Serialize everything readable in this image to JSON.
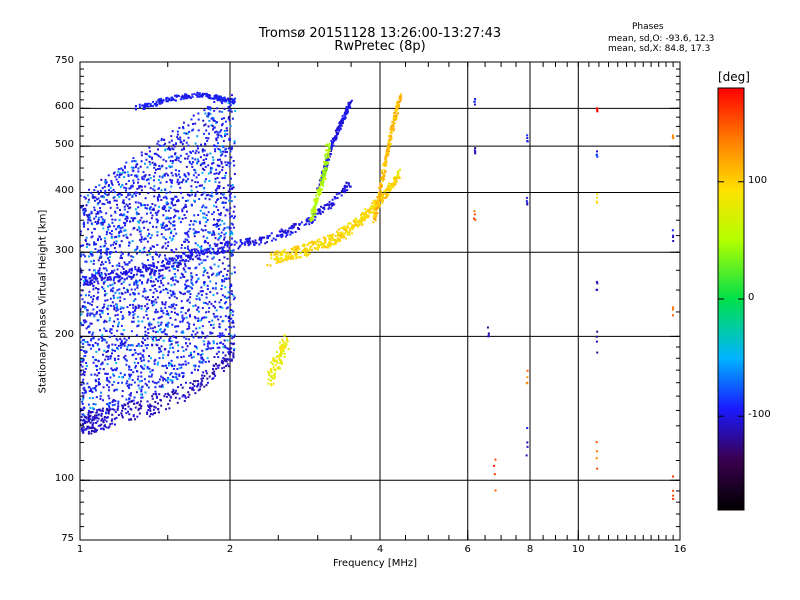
{
  "title": {
    "line1": "Tromsø 20151128 13:26:00-13:27:43",
    "line2": "RwPretec (8p)"
  },
  "phases_box": {
    "heading": "Phases",
    "line_o": "mean, sd,O: -93.6, 12.3",
    "line_x": "mean, sd,X: 84.8, 17.3"
  },
  "chart_data": {
    "type": "scatter",
    "title": "Tromsø 20151128 13:26:00-13:27:43",
    "subtitle": "RwPretec (8p)",
    "xlabel": "Frequency [MHz]",
    "ylabel": "Stationary phase Virtual Height [km]",
    "x_scale": "log",
    "y_scale": "log",
    "xlim": [
      1,
      16
    ],
    "ylim": [
      75,
      750
    ],
    "x_ticks": [
      1,
      2,
      4,
      6,
      8,
      10,
      16
    ],
    "x_tick_labels": [
      "1",
      "2",
      "4",
      "6",
      "8",
      "10",
      "16"
    ],
    "x_minor_ticks": [
      3,
      5,
      7,
      9,
      11,
      12,
      13,
      14,
      15
    ],
    "y_ticks": [
      75,
      100,
      200,
      300,
      400,
      500,
      600,
      750
    ],
    "y_tick_labels": [
      "75",
      "100",
      "200",
      "300",
      "400",
      "500",
      "600",
      "750"
    ],
    "grid": true,
    "grid_x": [
      2,
      4,
      6,
      8,
      10
    ],
    "grid_y": [
      100,
      200,
      300,
      400,
      500,
      600
    ],
    "colorbar": {
      "title": "[deg]",
      "range": [
        -180,
        180
      ],
      "ticks": [
        100,
        0,
        -100
      ],
      "tick_labels": [
        "100",
        "0",
        "-100"
      ]
    },
    "series": [
      {
        "mode": "O",
        "phase_deg_mean": -93.6,
        "traces": [
          {
            "f": [
              1.0,
              1.05,
              1.1,
              1.2,
              1.35,
              1.5,
              1.7,
              1.9,
              2.05
            ],
            "h": [
              130,
              132,
              134,
              137,
              142,
              148,
              158,
              172,
              188
            ],
            "phase": -110
          },
          {
            "f": [
              1.0,
              1.1,
              1.25,
              1.4,
              1.6,
              1.8,
              2.0,
              2.3,
              2.6,
              2.9,
              3.2,
              3.5
            ],
            "h": [
              260,
              265,
              270,
              278,
              290,
              300,
              310,
              318,
              330,
              350,
              380,
              420
            ],
            "phase": -100
          },
          {
            "f": [
              1.3,
              1.45,
              1.6,
              1.75,
              1.9,
              2.05
            ],
            "h": [
              600,
              620,
              635,
              640,
              630,
              620
            ],
            "phase": -95
          },
          {
            "f": [
              3.0,
              3.1,
              3.2,
              3.3,
              3.4,
              3.5
            ],
            "h": [
              400,
              450,
              500,
              540,
              580,
              620
            ],
            "phase": -100
          }
        ],
        "band_f": [
          1.0,
          2.05
        ],
        "band_h": [
          130,
          640
        ]
      },
      {
        "mode": "X",
        "phase_deg_mean": 84.8,
        "traces": [
          {
            "f": [
              2.4,
              2.6,
              2.8,
              3.0,
              3.2,
              3.4,
              3.6,
              3.8,
              4.0,
              4.2,
              4.4
            ],
            "h": [
              290,
              296,
              302,
              310,
              318,
              330,
              345,
              365,
              385,
              410,
              440
            ],
            "phase": 95
          },
          {
            "f": [
              3.9,
              4.0,
              4.1,
              4.2,
              4.3,
              4.4
            ],
            "h": [
              350,
              400,
              460,
              520,
              580,
              640
            ],
            "phase": 110
          },
          {
            "f": [
              2.9,
              3.0,
              3.1,
              3.15
            ],
            "h": [
              350,
              390,
              440,
              500
            ],
            "phase": 50
          },
          {
            "f": [
              2.4,
              2.5,
              2.6
            ],
            "h": [
              165,
              180,
              195
            ],
            "phase": 80
          }
        ]
      },
      {
        "mode": "sparse",
        "points": [
          {
            "f": 6.2,
            "h": 620,
            "phase": -100
          },
          {
            "f": 6.2,
            "h": 490,
            "phase": -110
          },
          {
            "f": 6.2,
            "h": 360,
            "phase": 150
          },
          {
            "f": 6.6,
            "h": 200,
            "phase": -110
          },
          {
            "f": 6.8,
            "h": 103,
            "phase": 160
          },
          {
            "f": 7.9,
            "h": 520,
            "phase": -100
          },
          {
            "f": 7.9,
            "h": 380,
            "phase": -110
          },
          {
            "f": 7.9,
            "h": 160,
            "phase": 130
          },
          {
            "f": 7.9,
            "h": 120,
            "phase": -110
          },
          {
            "f": 10.9,
            "h": 600,
            "phase": 170
          },
          {
            "f": 10.9,
            "h": 480,
            "phase": -90
          },
          {
            "f": 10.9,
            "h": 390,
            "phase": 90
          },
          {
            "f": 10.9,
            "h": 260,
            "phase": -100
          },
          {
            "f": 10.9,
            "h": 195,
            "phase": -110
          },
          {
            "f": 10.9,
            "h": 115,
            "phase": 140
          },
          {
            "f": 15.5,
            "h": 520,
            "phase": 130
          },
          {
            "f": 15.5,
            "h": 325,
            "phase": -100
          },
          {
            "f": 15.5,
            "h": 230,
            "phase": 140
          },
          {
            "f": 15.5,
            "h": 95,
            "phase": 150
          }
        ]
      }
    ]
  }
}
